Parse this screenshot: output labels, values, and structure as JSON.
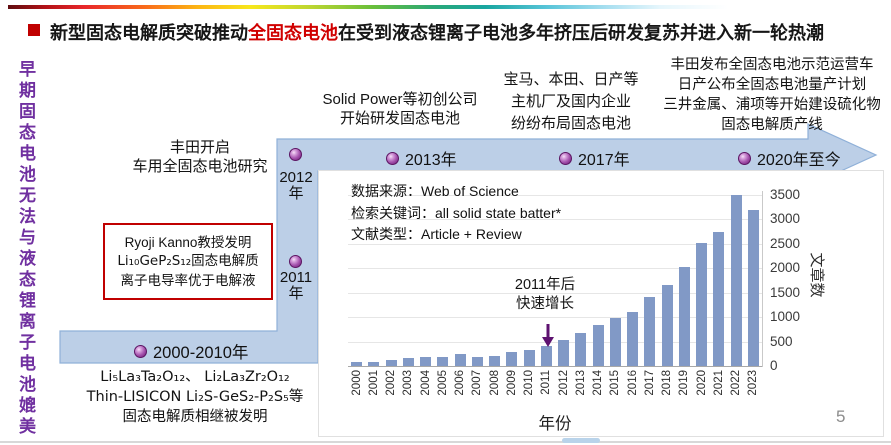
{
  "slide": {
    "title": {
      "prefix": "新型固态电解质突破推动",
      "highlight": "全固态电池",
      "suffix": "在受到液态锂离子电池多年挤压后研发复苏并进入新一轮热潮"
    },
    "left_vertical_text": "早期固态电池无法与液态锂离子电池媲美",
    "page_number": "5"
  },
  "timeline": {
    "periods": {
      "p2000": {
        "label": "2000-2010年"
      },
      "p2011": {
        "year": "2011",
        "suffix": "年"
      },
      "p2012": {
        "year": "2012",
        "suffix": "年"
      },
      "p2013": {
        "label": "2013年"
      },
      "p2017": {
        "label": "2017年"
      },
      "p2020": {
        "label": "2020年至今"
      }
    },
    "events": {
      "toyota_2012": [
        "丰田开启",
        "车用全固态电池研究"
      ],
      "solid_power_2013": [
        "Solid Power等初创公司",
        "开始研发固态电池"
      ],
      "oem_2017": [
        "宝马、本田、日产等",
        "主机厂及国内企业",
        "纷纷布局固态电池"
      ],
      "industry_2020": [
        "丰田发布全固态电池示范运营车",
        "日产公布全固态电池量产计划",
        "三井金属、浦项等开始建设硫化物",
        "固态电解质产线"
      ],
      "kanno_box": [
        "Ryoji Kanno教授发明",
        "Li₁₀GeP₂S₁₂固态电解质",
        "离子电导率优于电解液"
      ],
      "early_electrolytes": [
        "Li₅La₃Ta₂O₁₂、 Li₂La₃Zr₂O₁₂",
        "Thin-LISICON Li₂S-GeS₂-P₂S₅等",
        "固态电解质相继被发明"
      ]
    }
  },
  "chart_data": {
    "type": "bar",
    "categories": [
      "2000",
      "2001",
      "2002",
      "2003",
      "2004",
      "2005",
      "2006",
      "2007",
      "2008",
      "2009",
      "2010",
      "2011",
      "2012",
      "2013",
      "2014",
      "2015",
      "2016",
      "2017",
      "2018",
      "2019",
      "2020",
      "2021",
      "2022",
      "2023"
    ],
    "values": [
      75,
      80,
      115,
      160,
      175,
      175,
      235,
      180,
      195,
      290,
      325,
      405,
      530,
      665,
      830,
      980,
      1100,
      1405,
      1660,
      2030,
      2515,
      2725,
      3485,
      3180
    ],
    "xlabel": "年份",
    "ylabel": "文章数",
    "ylim": [
      0,
      3500
    ],
    "ytick_step": 500,
    "yaxis_side": "right",
    "grid": "horizontal",
    "bar_color": "#8199c6",
    "annotation_lines": [
      "2011年后",
      "快速增长"
    ],
    "annotation_arrow_color": "#5e1270",
    "source_lines": [
      "数据来源：Web of Science",
      "检索关键词：all solid state batter*",
      "文献类型：Article + Review"
    ]
  },
  "colors": {
    "title_highlight": "#d00000",
    "bullet_red": "#c00000",
    "band_blue": "#bccfe7",
    "band_stroke": "#8fb0d8",
    "node_purple": "#7c2a85",
    "vertical_text_purple": "#7030a0",
    "bar_blue": "#8199c6",
    "callout_border_red": "#c00000"
  }
}
